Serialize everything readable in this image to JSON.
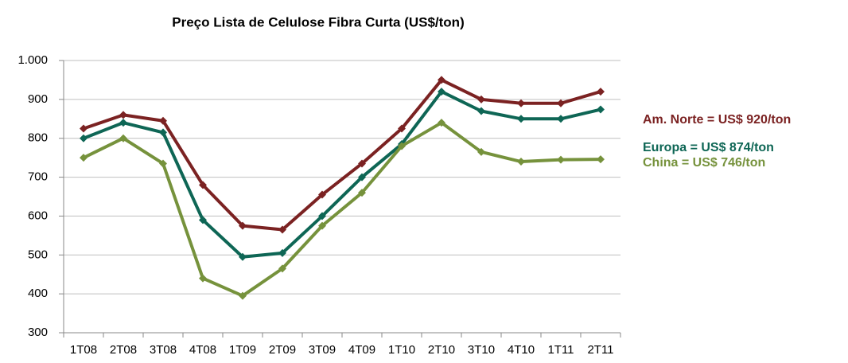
{
  "chart_data": {
    "type": "line",
    "title": "Preço Lista de Celulose Fibra Curta (US$/ton)",
    "categories": [
      "1T08",
      "2T08",
      "3T08",
      "4T08",
      "1T09",
      "2T09",
      "3T09",
      "4T09",
      "1T10",
      "2T10",
      "3T10",
      "4T10",
      "1T11",
      "2T11"
    ],
    "series": [
      {
        "color": "#7b2222",
        "values": [
          825,
          860,
          845,
          680,
          575,
          565,
          655,
          735,
          825,
          950,
          900,
          890,
          890,
          920
        ]
      },
      {
        "color": "#0e6655",
        "values": [
          800,
          840,
          815,
          590,
          495,
          505,
          600,
          700,
          785,
          920,
          870,
          850,
          850,
          874
        ]
      },
      {
        "color": "#76923c",
        "values": [
          750,
          800,
          735,
          440,
          395,
          465,
          575,
          660,
          780,
          840,
          765,
          740,
          745,
          746
        ]
      }
    ],
    "ylim": [
      300,
      1000
    ],
    "yticks": [
      300,
      400,
      500,
      600,
      700,
      800,
      900,
      {
        "value": 1000,
        "label": "1.000"
      }
    ],
    "grid": true,
    "annotations": [
      {
        "text": "Am. Norte = US$ 920/ton",
        "color": "#7b2222"
      },
      {
        "text": "Europa = US$ 874/ton",
        "color": "#0e6655"
      },
      {
        "text": "China = US$ 746/ton",
        "color": "#76923c"
      }
    ]
  }
}
